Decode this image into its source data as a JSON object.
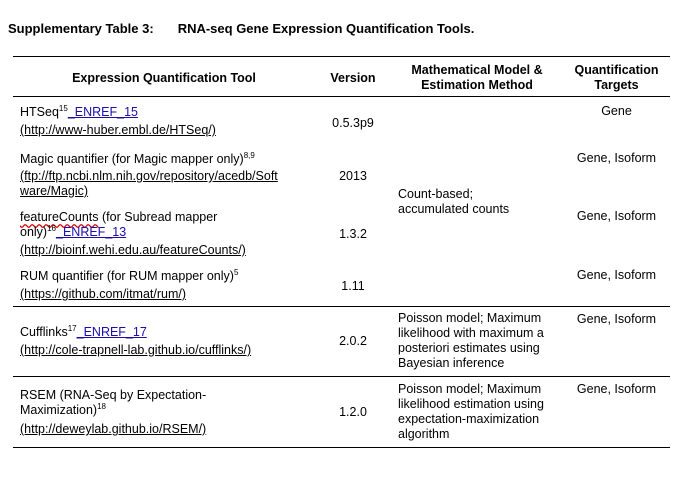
{
  "caption": {
    "label": "Supplementary Table 3:",
    "title": "RNA-seq Gene Expression Quantification Tools."
  },
  "headers": {
    "tool": "Expression Quantification Tool",
    "version": "Version",
    "model_line1": "Mathematical Model &",
    "model_line2": "Estimation Method",
    "targets_line1": "Quantification",
    "targets_line2": "Targets"
  },
  "rows": [
    {
      "name": "HTSeq",
      "sup": "15",
      "ref": "_ENREF_15",
      "url": "(http://www-huber.embl.de/HTSeq/)",
      "version": "0.5.3p9",
      "targets": "Gene"
    },
    {
      "name": "Magic quantifier (for Magic mapper only)",
      "sup": "8,9",
      "url_line1": "(ftp://ftp.ncbi.nlm.nih.gov/repository/acedb/Soft",
      "url_line2": "ware/Magic)",
      "version": "2013",
      "targets": "Gene, Isoform"
    },
    {
      "name_part1": "featureCounts",
      "name_part2": " (for Subread mapper",
      "name_line2": "only)",
      "sup": "16",
      "ref": "_ENREF_13",
      "url": "(http://bioinf.wehi.edu.au/featureCounts/)",
      "version": "1.3.2",
      "targets": "Gene, Isoform"
    },
    {
      "name": "RUM quantifier (for RUM mapper only)",
      "sup": "5",
      "url": "(https://github.com/itmat/rum/)",
      "version": "1.11",
      "targets": "Gene, Isoform"
    },
    {
      "name": "Cufflinks",
      "sup": "17",
      "ref": "_ENREF_17",
      "url": "(http://cole-trapnell-lab.github.io/cufflinks/)",
      "version": "2.0.2",
      "model_lines": [
        "Poisson model; Maximum",
        "likelihood with maximum a",
        "posteriori estimates using",
        "Bayesian inference"
      ],
      "targets": "Gene, Isoform"
    },
    {
      "name_line1": "RSEM (RNA-Seq by Expectation-",
      "name_line2": "Maximization)",
      "sup": "18",
      "url": "(http://deweylab.github.io/RSEM/)",
      "version": "1.2.0",
      "model_lines": [
        "Poisson model; Maximum",
        "likelihood estimation using",
        "expectation-maximization",
        "algorithm"
      ],
      "targets": "Gene, Isoform"
    }
  ],
  "shared_model": {
    "line1": "Count-based;",
    "line2": "accumulated counts"
  }
}
